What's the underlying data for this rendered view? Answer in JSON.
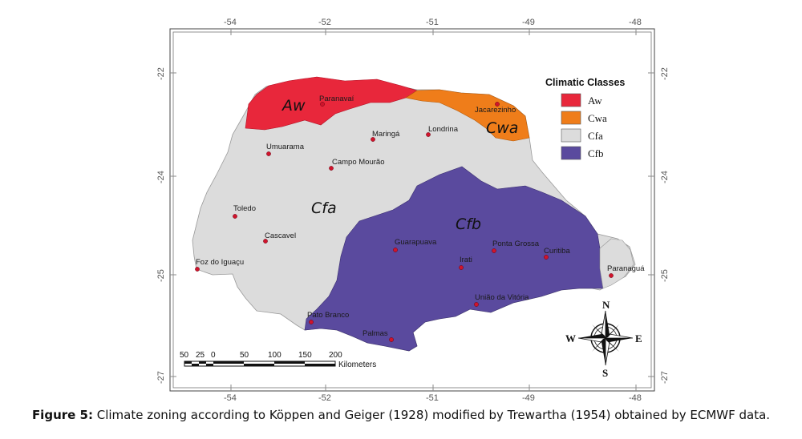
{
  "map": {
    "longitude_ticks": [
      "-54",
      "-52",
      "-51",
      "-49",
      "-48"
    ],
    "latitude_ticks": [
      "-22",
      "-24",
      "-25",
      "-27"
    ],
    "zones": [
      {
        "code": "Aw",
        "color": "#e8273b"
      },
      {
        "code": "Cwa",
        "color": "#ef7d1a"
      },
      {
        "code": "Cfa",
        "color": "#dcdcdc"
      },
      {
        "code": "Cfb",
        "color": "#5a4a9e"
      }
    ],
    "cities": [
      {
        "name": "Paranavaí"
      },
      {
        "name": "Jacarezinho"
      },
      {
        "name": "Maringá"
      },
      {
        "name": "Londrina"
      },
      {
        "name": "Umuarama"
      },
      {
        "name": "Campo Mourão"
      },
      {
        "name": "Toledo"
      },
      {
        "name": "Cascavel"
      },
      {
        "name": "Foz do Iguaçu"
      },
      {
        "name": "Guarapuava"
      },
      {
        "name": "Ponta Grossa"
      },
      {
        "name": "Irati"
      },
      {
        "name": "Curitiba"
      },
      {
        "name": "Paranaguá"
      },
      {
        "name": "União da Vitória"
      },
      {
        "name": "Pato Branco"
      },
      {
        "name": "Palmas"
      }
    ],
    "city_marker_color": "#d0142c"
  },
  "legend": {
    "title": "Climatic Classes",
    "items": [
      "Aw",
      "Cwa",
      "Cfa",
      "Cfb"
    ]
  },
  "scale_bar": {
    "ticks": [
      "50",
      "25",
      "0",
      "50",
      "100",
      "150",
      "200"
    ],
    "unit": "Kilometers"
  },
  "compass": {
    "n": "N",
    "s": "S",
    "e": "E",
    "w": "W"
  },
  "caption": {
    "label": "Figure 5:",
    "text": " Climate zoning according to Köppen and Geiger (1928) modified by Trewartha (1954) obtained by ECMWF data."
  }
}
